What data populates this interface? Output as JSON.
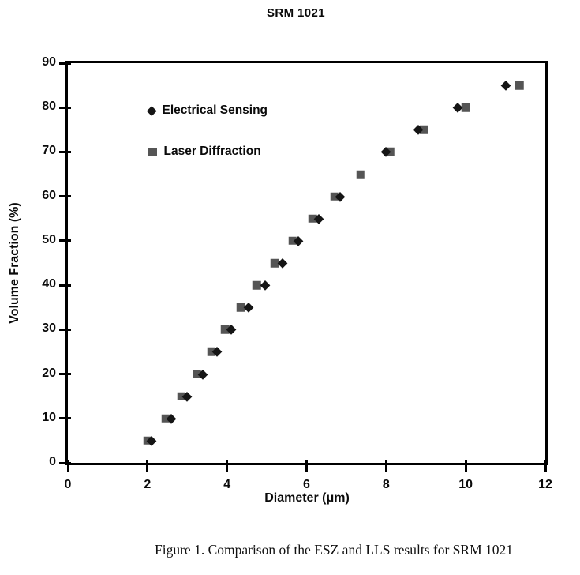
{
  "chart_data": {
    "type": "scatter",
    "title": "SRM 1021",
    "xlabel": "Diameter (μm)",
    "ylabel": "Volume Fraction (%)",
    "caption": "Figure 1. Comparison of the ESZ and LLS results for SRM 1021",
    "xlim": [
      0,
      12
    ],
    "ylim": [
      0,
      90
    ],
    "x_ticks": [
      0,
      2,
      4,
      6,
      8,
      10,
      12
    ],
    "y_ticks": [
      0,
      10,
      20,
      30,
      40,
      50,
      60,
      70,
      80,
      90
    ],
    "grid": false,
    "legend_position": "inside-upper-left",
    "series": [
      {
        "name": "Electrical Sensing",
        "marker": "diamond",
        "color": "#151515",
        "points": [
          [
            2.1,
            5
          ],
          [
            2.6,
            10
          ],
          [
            3.0,
            15
          ],
          [
            3.4,
            20
          ],
          [
            3.75,
            25
          ],
          [
            4.1,
            30
          ],
          [
            4.55,
            35
          ],
          [
            4.95,
            40
          ],
          [
            5.4,
            45
          ],
          [
            5.8,
            50
          ],
          [
            6.3,
            55
          ],
          [
            6.85,
            60
          ],
          [
            8.0,
            70
          ],
          [
            8.8,
            75
          ],
          [
            9.8,
            80
          ],
          [
            11.0,
            85
          ]
        ]
      },
      {
        "name": "Laser Diffraction",
        "marker": "square",
        "color": "#555555",
        "points": [
          [
            2.0,
            5
          ],
          [
            2.45,
            10
          ],
          [
            2.85,
            15
          ],
          [
            3.25,
            20
          ],
          [
            3.6,
            25
          ],
          [
            3.95,
            30
          ],
          [
            4.35,
            35
          ],
          [
            4.75,
            40
          ],
          [
            5.2,
            45
          ],
          [
            5.65,
            50
          ],
          [
            6.15,
            55
          ],
          [
            6.7,
            60
          ],
          [
            7.35,
            65
          ],
          [
            8.1,
            70
          ],
          [
            8.95,
            75
          ],
          [
            10.0,
            80
          ],
          [
            11.35,
            85
          ]
        ]
      }
    ]
  }
}
